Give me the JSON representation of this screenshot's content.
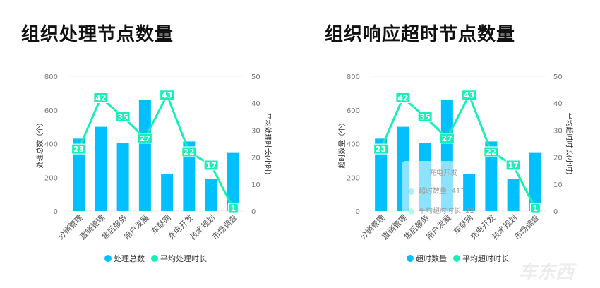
{
  "chart_data": [
    {
      "type": "bar+line",
      "title": "组织处理节点数量",
      "categories": [
        "分销管理",
        "直销管理",
        "售后服务",
        "用户发展",
        "车联网",
        "充电开发",
        "技术规划",
        "市场调查"
      ],
      "ylabel": "处理总数（个）",
      "y2label": "平均处理时长(小时)",
      "ylim": [
        0,
        800
      ],
      "yticks": [
        0,
        200,
        400,
        600,
        800
      ],
      "y2lim": [
        0,
        50
      ],
      "y2ticks": [
        0,
        10,
        20,
        30,
        40,
        50
      ],
      "series": [
        {
          "name": "处理总数",
          "type": "bar",
          "axis": "left",
          "color": "#00c0ff",
          "values": [
            430,
            500,
            405,
            662,
            218,
            413,
            190,
            345
          ]
        },
        {
          "name": "平均处理时长",
          "type": "line",
          "axis": "right",
          "color": "#16f0b8",
          "values": [
            23,
            42,
            35,
            27,
            43,
            22,
            17,
            1
          ]
        }
      ],
      "legend": "bottom"
    },
    {
      "type": "bar+line",
      "title": "组织响应超时节点数量",
      "categories": [
        "分销管理",
        "直销管理",
        "售后服务",
        "用户发展",
        "车联网",
        "充电开发",
        "技术规划",
        "市场调查"
      ],
      "ylabel": "超时数量（个）",
      "y2label": "平均超时时长(小时)",
      "ylim": [
        0,
        800
      ],
      "yticks": [
        0,
        200,
        400,
        600,
        800
      ],
      "y2lim": [
        0,
        50
      ],
      "y2ticks": [
        0,
        10,
        20,
        30,
        40,
        50
      ],
      "series": [
        {
          "name": "超时数量",
          "type": "bar",
          "axis": "left",
          "color": "#00c0ff",
          "values": [
            430,
            500,
            405,
            662,
            218,
            413,
            190,
            345
          ]
        },
        {
          "name": "平均超时时长",
          "type": "line",
          "axis": "right",
          "color": "#16f0b8",
          "values": [
            23,
            42,
            35,
            27,
            43,
            22,
            17,
            1
          ]
        }
      ],
      "legend": "bottom",
      "tooltip": {
        "category": "充电开发",
        "row1_label": "超时数量:",
        "row1_value": "413",
        "row2_label": "平均超时时长:",
        "row2_value": "22"
      }
    }
  ],
  "watermark": "车东西"
}
